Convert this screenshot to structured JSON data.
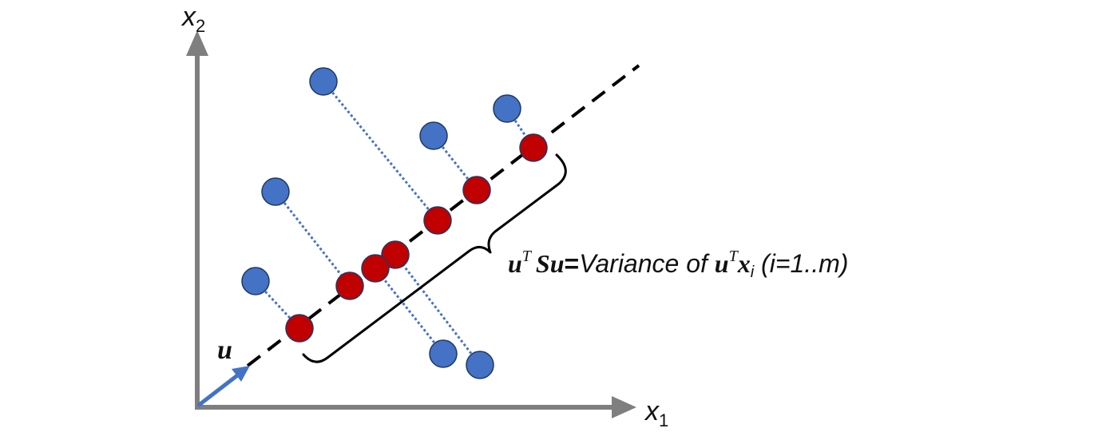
{
  "labels": {
    "x1": "x",
    "x1_sub": "1",
    "x2": "x",
    "x2_sub": "2",
    "u": "u"
  },
  "equation": {
    "u1": "u",
    "T1": "T",
    "S": "S",
    "u2": "u",
    "eq": "=",
    "text": "Variance of ",
    "u3": "u",
    "T2": "T",
    "x": "x",
    "i": "i",
    "range": " (i=1..m)"
  },
  "colors": {
    "axis": "#7f7f7f",
    "point_original": "#4472c4",
    "point_projected": "#c00000",
    "outline": "#1f3864",
    "projection_line": "#4472c4",
    "direction_arrow": "#4472c4",
    "principal_axis": "#000000"
  },
  "icons": {
    "axis_arrow": "arrowhead",
    "brace": "curly-brace"
  }
}
